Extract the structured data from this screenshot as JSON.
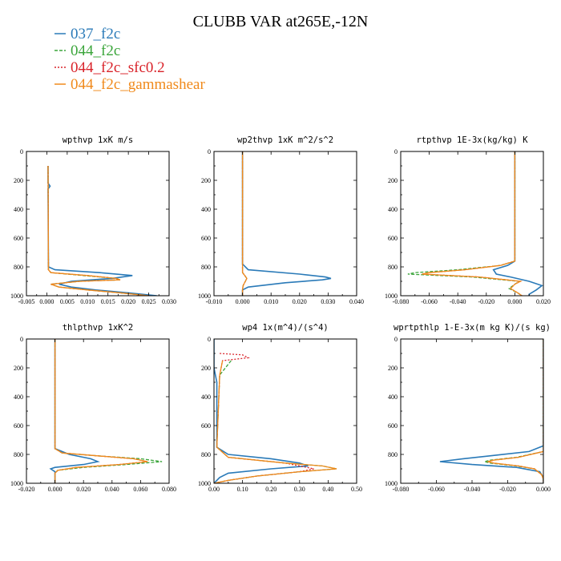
{
  "figure": {
    "title": "CLUBB VAR at265E,-12N",
    "legend": [
      {
        "name": "037_f2c",
        "color": "#2a7ab8",
        "dash": ""
      },
      {
        "name": "044_f2c",
        "color": "#3aa53a",
        "dash": "4,2"
      },
      {
        "name": "044_f2c_sfc0.2",
        "color": "#d9232a",
        "dash": "2,2"
      },
      {
        "name": "044_f2c_gammashear",
        "color": "#f08a1c",
        "dash": ""
      }
    ]
  },
  "chart_data": [
    {
      "type": "line",
      "title": "wpthvp  1xK m/s",
      "xlim": [
        -0.005,
        0.03
      ],
      "ylim": [
        1000,
        0
      ],
      "xticks": [
        -0.005,
        0.0,
        0.005,
        0.01,
        0.015,
        0.02,
        0.025,
        0.03
      ],
      "xtick_labels": [
        "-0.005",
        "0.000",
        "0.005",
        "0.010",
        "0.015",
        "0.020",
        "0.025",
        "0.030"
      ],
      "yticks": [
        0,
        200,
        400,
        600,
        800,
        1000
      ],
      "ytick_labels": [
        "0",
        "200",
        "400",
        "600",
        "800",
        "1000"
      ],
      "series": [
        {
          "name": "037_f2c",
          "y": [
            100,
            220,
            240,
            260,
            800,
            820,
            840,
            860,
            880,
            900,
            920,
            940,
            960,
            980,
            1000
          ],
          "values": [
            0.0003,
            0.0003,
            0.0008,
            0.0003,
            0.0004,
            0.002,
            0.013,
            0.021,
            0.016,
            0.006,
            0.003,
            0.006,
            0.012,
            0.02,
            0.027
          ]
        },
        {
          "name": "044_f2c",
          "y": [
            100,
            820,
            840,
            860,
            880,
            890,
            900,
            920,
            940,
            960,
            980,
            1000
          ],
          "values": [
            0.0003,
            0.0004,
            0.001,
            0.009,
            0.017,
            0.018,
            0.008,
            0.001,
            0.003,
            0.01,
            0.018,
            0.025
          ]
        },
        {
          "name": "044_f2c_sfc0.2",
          "y": [
            100,
            820,
            840,
            860,
            880,
            890,
            900,
            920,
            940,
            960,
            980,
            1000
          ],
          "values": [
            0.0003,
            0.0004,
            0.001,
            0.01,
            0.017,
            0.018,
            0.008,
            0.001,
            0.003,
            0.01,
            0.018,
            0.025
          ]
        },
        {
          "name": "044_f2c_gammashear",
          "y": [
            100,
            820,
            840,
            860,
            880,
            890,
            900,
            920,
            940,
            960,
            980,
            1000
          ],
          "values": [
            0.0003,
            0.0004,
            0.001,
            0.01,
            0.017,
            0.018,
            0.008,
            0.001,
            0.003,
            0.01,
            0.018,
            0.025
          ]
        }
      ]
    },
    {
      "type": "line",
      "title": "wp2thvp  1xK m^2/s^2",
      "xlim": [
        -0.01,
        0.04
      ],
      "ylim": [
        1000,
        0
      ],
      "xticks": [
        -0.01,
        0.0,
        0.01,
        0.02,
        0.03,
        0.04
      ],
      "xtick_labels": [
        "-0.010",
        "0.000",
        "0.010",
        "0.020",
        "0.030",
        "0.040"
      ],
      "yticks": [
        0,
        200,
        400,
        600,
        800,
        1000
      ],
      "ytick_labels": [
        "0",
        "200",
        "400",
        "600",
        "800",
        "1000"
      ],
      "series": [
        {
          "name": "037_f2c",
          "y": [
            0,
            780,
            820,
            850,
            870,
            880,
            890,
            910,
            940,
            960,
            1000
          ],
          "values": [
            0.0,
            0.0,
            0.002,
            0.02,
            0.029,
            0.031,
            0.028,
            0.015,
            0.002,
            0.0,
            0.0
          ]
        },
        {
          "name": "044_f2c",
          "y": [
            0,
            840,
            860,
            880,
            900,
            930,
            960,
            1000
          ],
          "values": [
            0.0,
            0.0,
            0.0008,
            0.0015,
            0.001,
            0.0002,
            0.0,
            0.0
          ]
        },
        {
          "name": "044_f2c_sfc0.2",
          "y": [
            0,
            840,
            860,
            880,
            900,
            930,
            960,
            1000
          ],
          "values": [
            0.0,
            0.0,
            0.0008,
            0.0015,
            0.001,
            0.0002,
            0.0,
            0.0
          ]
        },
        {
          "name": "044_f2c_gammashear",
          "y": [
            0,
            840,
            860,
            880,
            900,
            930,
            960,
            1000
          ],
          "values": [
            0.0,
            0.0,
            0.0008,
            0.0015,
            0.001,
            0.0002,
            0.0,
            0.0
          ]
        }
      ]
    },
    {
      "type": "line",
      "title": "rtpthvp  1E-3x(kg/kg) K",
      "xlim": [
        -0.08,
        0.02
      ],
      "ylim": [
        1000,
        0
      ],
      "xticks": [
        -0.08,
        -0.06,
        -0.04,
        -0.02,
        0.0,
        0.02
      ],
      "xtick_labels": [
        "-0.080",
        "-0.060",
        "-0.040",
        "-0.020",
        "0.000",
        "0.020"
      ],
      "yticks": [
        0,
        200,
        400,
        600,
        800,
        1000
      ],
      "ytick_labels": [
        "0",
        "200",
        "400",
        "600",
        "800",
        "1000"
      ],
      "series": [
        {
          "name": "037_f2c",
          "y": [
            0,
            760,
            790,
            820,
            850,
            870,
            900,
            930,
            960,
            990,
            1000
          ],
          "values": [
            0.0,
            0.0,
            -0.005,
            -0.015,
            -0.013,
            -0.003,
            0.01,
            0.019,
            0.015,
            0.01,
            0.01
          ]
        },
        {
          "name": "044_f2c",
          "y": [
            0,
            760,
            790,
            820,
            840,
            850,
            870,
            900,
            920,
            950,
            980,
            1000
          ],
          "values": [
            0.0,
            0.0,
            -0.01,
            -0.04,
            -0.07,
            -0.075,
            -0.03,
            0.003,
            0.0,
            -0.004,
            0.002,
            0.005
          ]
        },
        {
          "name": "044_f2c_sfc0.2",
          "y": [
            0,
            760,
            790,
            820,
            840,
            850,
            870,
            900,
            920,
            950,
            980,
            1000
          ],
          "values": [
            0.0,
            0.0,
            -0.01,
            -0.035,
            -0.06,
            -0.065,
            -0.025,
            0.004,
            0.0,
            -0.003,
            0.002,
            0.005
          ]
        },
        {
          "name": "044_f2c_gammashear",
          "y": [
            0,
            760,
            790,
            820,
            840,
            850,
            870,
            900,
            920,
            950,
            980,
            1000
          ],
          "values": [
            0.0,
            0.0,
            -0.01,
            -0.035,
            -0.06,
            -0.065,
            -0.025,
            0.004,
            0.0,
            -0.003,
            0.002,
            0.005
          ]
        }
      ]
    },
    {
      "type": "line",
      "title": "thlpthvp  1xK^2",
      "xlim": [
        -0.02,
        0.08
      ],
      "ylim": [
        1000,
        0
      ],
      "xticks": [
        -0.02,
        0.0,
        0.02,
        0.04,
        0.06,
        0.08
      ],
      "xtick_labels": [
        "-0.020",
        "0.000",
        "0.020",
        "0.040",
        "0.060",
        "0.080"
      ],
      "yticks": [
        0,
        200,
        400,
        600,
        800,
        1000
      ],
      "ytick_labels": [
        "0",
        "200",
        "400",
        "600",
        "800",
        "1000"
      ],
      "series": [
        {
          "name": "037_f2c",
          "y": [
            0,
            760,
            800,
            830,
            850,
            870,
            890,
            900,
            920,
            950,
            1000
          ],
          "values": [
            0.0,
            0.0,
            0.01,
            0.025,
            0.03,
            0.02,
            0.0,
            -0.003,
            0.0,
            0.0,
            0.0
          ]
        },
        {
          "name": "044_f2c",
          "y": [
            0,
            760,
            790,
            810,
            830,
            850,
            870,
            890,
            910,
            930,
            960,
            1000
          ],
          "values": [
            0.0,
            0.0,
            0.005,
            0.03,
            0.06,
            0.075,
            0.05,
            0.02,
            0.002,
            0.0,
            0.0,
            0.0
          ]
        },
        {
          "name": "044_f2c_sfc0.2",
          "y": [
            0,
            760,
            790,
            810,
            830,
            850,
            870,
            890,
            910,
            930,
            960,
            1000
          ],
          "values": [
            0.0,
            0.0,
            0.005,
            0.03,
            0.055,
            0.065,
            0.045,
            0.015,
            0.002,
            0.0,
            0.0,
            0.0
          ]
        },
        {
          "name": "044_f2c_gammashear",
          "y": [
            0,
            760,
            790,
            810,
            830,
            850,
            870,
            890,
            910,
            930,
            960,
            1000
          ],
          "values": [
            0.0,
            0.0,
            0.005,
            0.03,
            0.055,
            0.065,
            0.045,
            0.015,
            0.002,
            0.0,
            0.0,
            0.0
          ]
        }
      ]
    },
    {
      "type": "line",
      "title": "wp4  1x(m^4)/(s^4)",
      "xlim": [
        0.0,
        0.5
      ],
      "ylim": [
        1000,
        0
      ],
      "xticks": [
        0.0,
        0.1,
        0.2,
        0.3,
        0.4,
        0.5
      ],
      "xtick_labels": [
        "0.00",
        "0.10",
        "0.20",
        "0.30",
        "0.40",
        "0.50"
      ],
      "yticks": [
        0,
        200,
        400,
        600,
        800,
        1000
      ],
      "ytick_labels": [
        "0",
        "200",
        "400",
        "600",
        "800",
        "1000"
      ],
      "series": [
        {
          "name": "037_f2c",
          "y": [
            0,
            200,
            300,
            750,
            800,
            830,
            860,
            880,
            900,
            930,
            960,
            1000
          ],
          "values": [
            0.0,
            0.0,
            0.01,
            0.01,
            0.05,
            0.2,
            0.3,
            0.33,
            0.2,
            0.05,
            0.02,
            0.0
          ]
        },
        {
          "name": "044_f2c",
          "y": [
            150,
            250,
            750,
            820,
            860,
            880,
            900,
            920,
            950,
            980,
            1000
          ],
          "values": [
            0.06,
            0.02,
            0.01,
            0.05,
            0.25,
            0.38,
            0.43,
            0.3,
            0.15,
            0.05,
            0.0
          ]
        },
        {
          "name": "044_f2c_sfc0.2",
          "y": [
            100,
            110,
            130,
            150,
            250,
            750,
            820,
            860,
            880,
            900,
            920,
            950,
            980,
            1000
          ],
          "values": [
            0.02,
            0.1,
            0.12,
            0.03,
            0.02,
            0.01,
            0.05,
            0.25,
            0.3,
            0.35,
            0.3,
            0.15,
            0.05,
            0.0
          ]
        },
        {
          "name": "044_f2c_gammashear",
          "y": [
            150,
            250,
            750,
            820,
            860,
            880,
            900,
            920,
            950,
            980,
            1000
          ],
          "values": [
            0.03,
            0.02,
            0.01,
            0.05,
            0.25,
            0.38,
            0.43,
            0.3,
            0.15,
            0.05,
            0.0
          ]
        }
      ]
    },
    {
      "type": "line",
      "title": "wprtpthlp  1-E-3x(m kg K)/(s kg)",
      "xlim": [
        -0.08,
        0.0
      ],
      "ylim": [
        1000,
        0
      ],
      "xticks": [
        -0.08,
        -0.06,
        -0.04,
        -0.02,
        0.0
      ],
      "xtick_labels": [
        "-0.080",
        "-0.060",
        "-0.040",
        "-0.020",
        "0.000"
      ],
      "yticks": [
        0,
        200,
        400,
        600,
        800,
        1000
      ],
      "ytick_labels": [
        "0",
        "200",
        "400",
        "600",
        "800",
        "1000"
      ],
      "series": [
        {
          "name": "037_f2c",
          "y": [
            0,
            740,
            780,
            810,
            830,
            850,
            870,
            890,
            920,
            960,
            1000
          ],
          "values": [
            0.0,
            0.0,
            -0.008,
            -0.03,
            -0.045,
            -0.058,
            -0.04,
            -0.015,
            -0.002,
            0.0,
            0.0
          ]
        },
        {
          "name": "044_f2c",
          "y": [
            0,
            780,
            820,
            840,
            850,
            860,
            880,
            900,
            940,
            970,
            1000
          ],
          "values": [
            0.0,
            0.0,
            -0.015,
            -0.03,
            -0.033,
            -0.03,
            -0.015,
            -0.005,
            -0.001,
            0.0,
            0.0
          ]
        },
        {
          "name": "044_f2c_sfc0.2",
          "y": [
            0,
            780,
            820,
            840,
            850,
            860,
            880,
            900,
            940,
            970,
            1000
          ],
          "values": [
            0.0,
            0.0,
            -0.014,
            -0.028,
            -0.031,
            -0.028,
            -0.014,
            -0.005,
            -0.001,
            0.0,
            0.0
          ]
        },
        {
          "name": "044_f2c_gammashear",
          "y": [
            0,
            780,
            820,
            840,
            850,
            860,
            880,
            900,
            940,
            970,
            1000
          ],
          "values": [
            0.0,
            0.0,
            -0.014,
            -0.028,
            -0.031,
            -0.028,
            -0.014,
            -0.005,
            -0.001,
            0.0,
            0.0
          ]
        }
      ]
    }
  ]
}
